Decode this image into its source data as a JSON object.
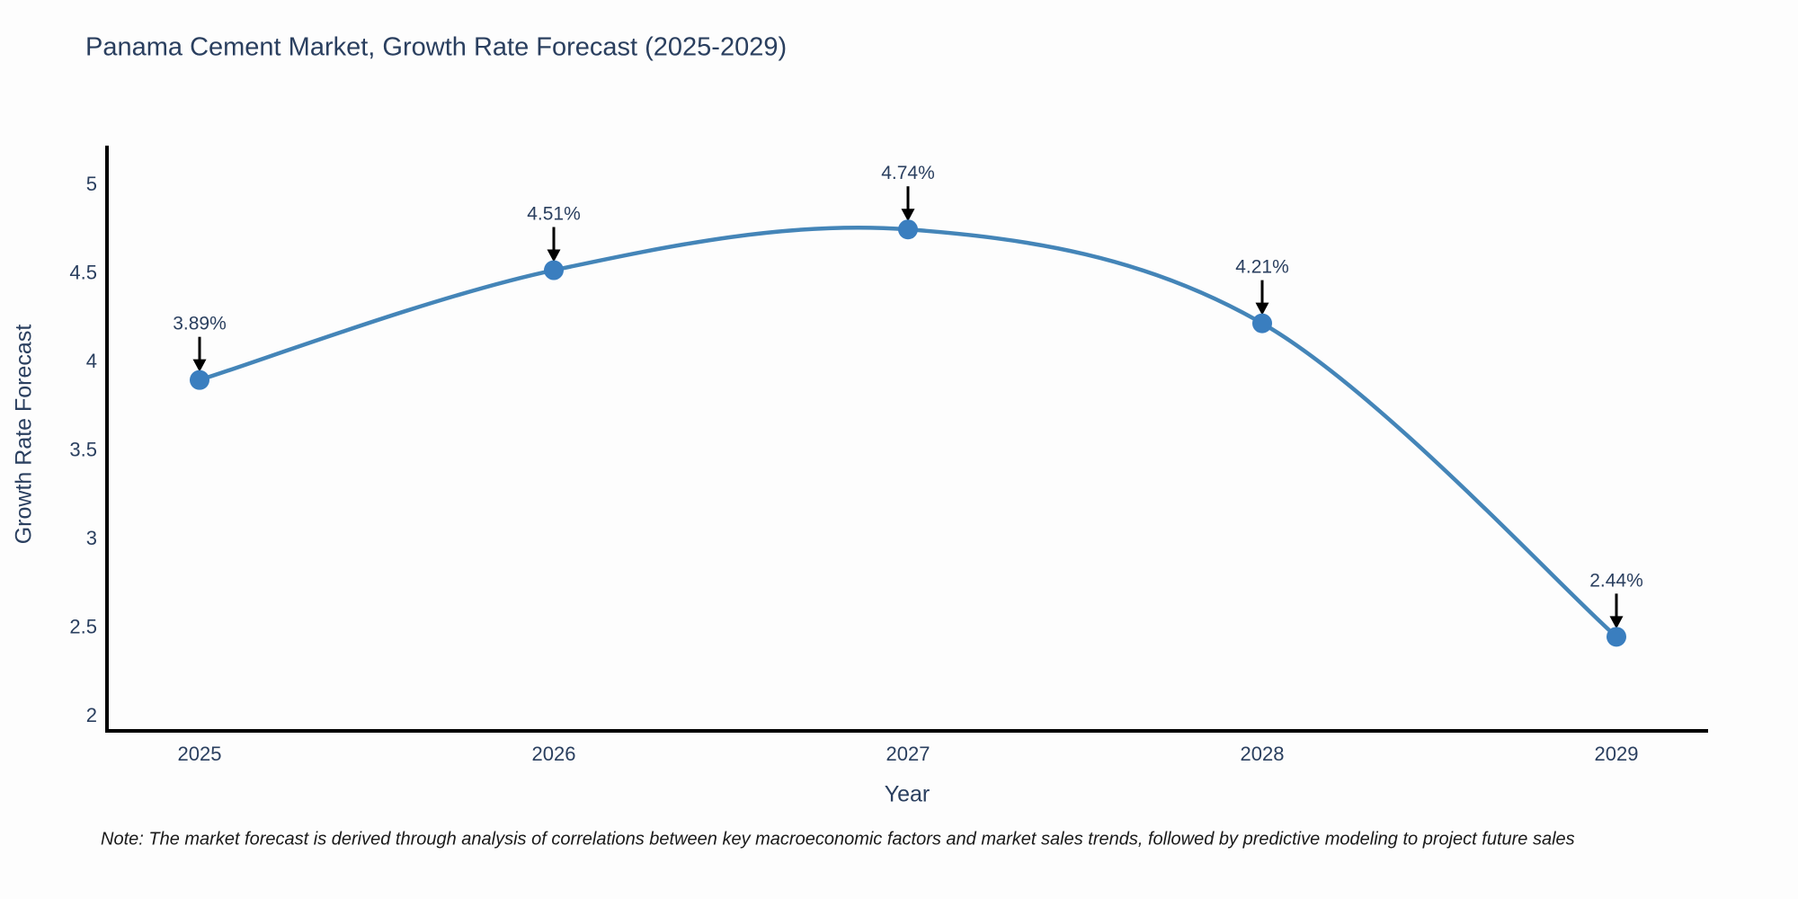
{
  "chart_data": {
    "type": "line",
    "title": "Panama Cement Market, Growth Rate Forecast (2025-2029)",
    "xlabel": "Year",
    "ylabel": "Growth Rate Forecast",
    "categories": [
      "2025",
      "2026",
      "2027",
      "2028",
      "2029"
    ],
    "values": [
      3.89,
      4.51,
      4.74,
      4.21,
      2.44
    ],
    "point_labels": [
      "3.89%",
      "4.51%",
      "4.74%",
      "4.21%",
      "2.44%"
    ],
    "y_ticks": [
      5,
      4.5,
      4,
      3.5,
      3,
      2.5,
      2
    ],
    "ylim": [
      1.9,
      5.2
    ],
    "grid": false,
    "legend": "none",
    "line_shape": "spline",
    "annotation_arrows": true,
    "colors": {
      "line": "#4485b8",
      "marker": "#3a7ebf",
      "text": "#2a3f5f",
      "axis": "#000000",
      "arrow": "#000000",
      "background": "#fdfdfd"
    },
    "note": "Note: The market forecast is derived through analysis of correlations between key macroeconomic factors and market sales trends, followed by predictive modeling to project future sales"
  }
}
